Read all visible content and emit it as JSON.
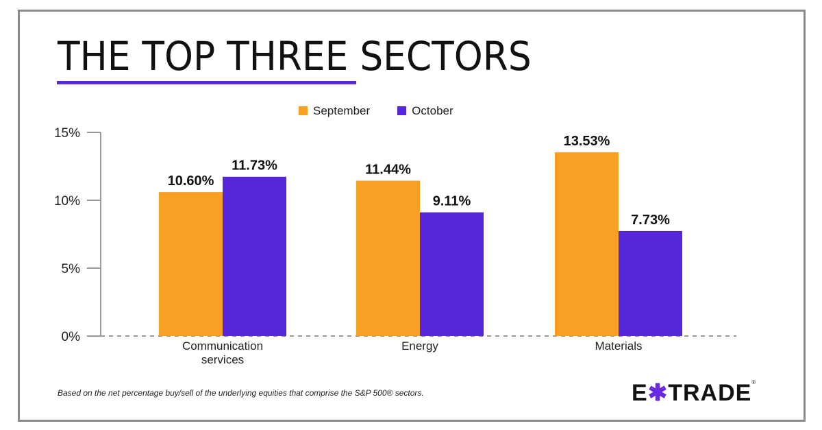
{
  "chart_data": {
    "type": "bar",
    "title": "THE TOP THREE SECTORS",
    "categories": [
      "Communication services",
      "Energy",
      "Materials"
    ],
    "category_lines": [
      [
        "Communication",
        "services"
      ],
      [
        "Energy"
      ],
      [
        "Materials"
      ]
    ],
    "series": [
      {
        "name": "September",
        "color": "#f7a023",
        "values": [
          10.6,
          11.44,
          13.53
        ],
        "labels": [
          "10.60%",
          "11.44%",
          "13.53%"
        ]
      },
      {
        "name": "October",
        "color": "#5627d9",
        "values": [
          11.73,
          9.11,
          7.73
        ],
        "labels": [
          "11.73%",
          "9.11%",
          "7.73%"
        ]
      }
    ],
    "yticks": [
      0,
      5,
      10,
      15
    ],
    "ytick_labels": [
      "0%",
      "5%",
      "10%",
      "15%"
    ],
    "ylim": [
      0,
      15
    ],
    "xlabel": "",
    "ylabel": "",
    "legend": "top-center",
    "grid": false
  },
  "footnote": "Based on the net percentage buy/sell of the underlying equities that comprise the S&P 500® sectors.",
  "logo": {
    "text": "E*TRADE",
    "left": "E",
    "mark": "✱",
    "right": "TRADE",
    "reg": "®"
  }
}
